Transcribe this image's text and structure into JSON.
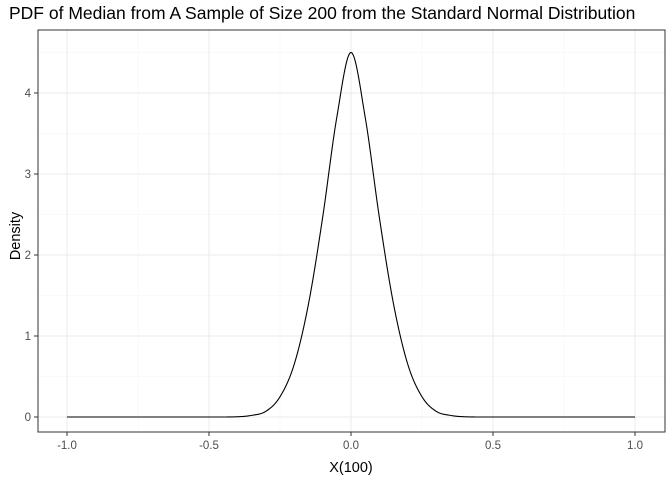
{
  "chart_data": {
    "type": "line",
    "title": "PDF of Median from A Sample of Size 200 from the Standard Normal Distribution",
    "xlabel": "X(100)",
    "ylabel": "Density",
    "xlim": [
      -1.0,
      1.0
    ],
    "ylim": [
      0,
      4.5
    ],
    "grid": true,
    "x_ticks": [
      -1.0,
      -0.5,
      0.0,
      0.5,
      1.0
    ],
    "x_tick_labels": [
      "-1.0",
      "-0.5",
      "0.0",
      "0.5",
      "1.0"
    ],
    "y_ticks": [
      0,
      1,
      2,
      3,
      4
    ],
    "y_tick_labels": [
      "0",
      "1",
      "2",
      "3",
      "4"
    ],
    "series": [
      {
        "x": [
          -1.0,
          -0.5,
          -0.4,
          -0.35,
          -0.3,
          -0.25,
          -0.2,
          -0.15,
          -0.1,
          -0.05,
          0.0,
          0.05,
          0.1,
          0.15,
          0.2,
          0.25,
          0.3,
          0.35,
          0.4,
          0.5,
          1.0
        ],
        "y": [
          0,
          0,
          0.003,
          0.02,
          0.07,
          0.25,
          0.65,
          1.39,
          2.46,
          3.7,
          4.5,
          3.7,
          2.46,
          1.39,
          0.65,
          0.25,
          0.07,
          0.02,
          0.003,
          0,
          0
        ]
      }
    ],
    "colors": {
      "line": "#000000",
      "grid_major": "#ebebeb",
      "grid_minor": "#f5f5f5",
      "panel_border": "#333333",
      "tick_label": "#4d4d4d"
    }
  }
}
